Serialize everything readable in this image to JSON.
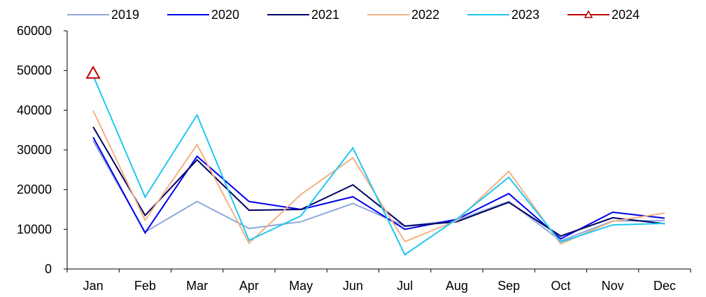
{
  "chart_data": {
    "type": "line",
    "categories": [
      "Jan",
      "Feb",
      "Mar",
      "Apr",
      "May",
      "Jun",
      "Jul",
      "Aug",
      "Sep",
      "Oct",
      "Nov",
      "Dec"
    ],
    "ylim": [
      0,
      60000
    ],
    "yticks": [
      0,
      10000,
      20000,
      30000,
      40000,
      50000,
      60000
    ],
    "grid": false,
    "legend_position": "top",
    "series": [
      {
        "name": "2019",
        "color": "#8fa8dc",
        "marker": "none",
        "values": [
          32300,
          9300,
          17000,
          10200,
          11900,
          16500,
          10800,
          12300,
          17000,
          7100,
          12100,
          12200
        ]
      },
      {
        "name": "2020",
        "color": "#0000ee",
        "marker": "none",
        "values": [
          33200,
          9100,
          28400,
          17000,
          15000,
          18200,
          10000,
          12500,
          19000,
          7600,
          14300,
          12800
        ]
      },
      {
        "name": "2021",
        "color": "#000066",
        "marker": "none",
        "values": [
          35800,
          13500,
          27500,
          14800,
          15000,
          21200,
          10800,
          11900,
          16800,
          8300,
          12900,
          11400
        ]
      },
      {
        "name": "2022",
        "color": "#f4b183",
        "marker": "none",
        "values": [
          39900,
          12300,
          31300,
          6500,
          18800,
          28000,
          6900,
          12200,
          24600,
          6300,
          12000,
          14100
        ]
      },
      {
        "name": "2023",
        "color": "#1ec8f0",
        "marker": "none",
        "values": [
          48700,
          18100,
          38800,
          7200,
          13400,
          30500,
          3600,
          12600,
          23100,
          6800,
          11100,
          11500
        ]
      },
      {
        "name": "2024",
        "color": "#c00000",
        "marker": "triangle",
        "values": [
          49300,
          null,
          null,
          null,
          null,
          null,
          null,
          null,
          null,
          null,
          null,
          null
        ]
      }
    ]
  }
}
